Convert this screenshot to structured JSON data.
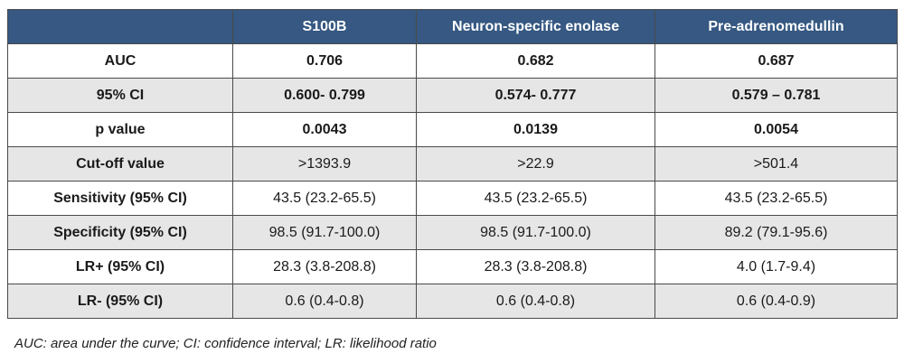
{
  "table": {
    "headers": [
      "",
      "S100B",
      "Neuron-specific enolase",
      "Pre-adrenomedullin"
    ],
    "rows": [
      {
        "label": "AUC",
        "cells": [
          "0.706",
          "0.682",
          "0.687"
        ],
        "bold": true
      },
      {
        "label": "95% CI",
        "cells": [
          "0.600- 0.799",
          "0.574- 0.777",
          "0.579 – 0.781"
        ],
        "bold": true
      },
      {
        "label": "p value",
        "cells": [
          "0.0043",
          "0.0139",
          "0.0054"
        ],
        "bold": true
      },
      {
        "label": "Cut-off value",
        "cells": [
          ">1393.9",
          ">22.9",
          ">501.4"
        ],
        "bold": false
      },
      {
        "label": "Sensitivity (95% CI)",
        "cells": [
          "43.5 (23.2-65.5)",
          "43.5 (23.2-65.5)",
          "43.5 (23.2-65.5)"
        ],
        "bold": false
      },
      {
        "label": "Specificity (95% CI)",
        "cells": [
          "98.5 (91.7-100.0)",
          "98.5 (91.7-100.0)",
          "89.2 (79.1-95.6)"
        ],
        "bold": false
      },
      {
        "label": "LR+ (95% CI)",
        "cells": [
          "28.3 (3.8-208.8)",
          "28.3 (3.8-208.8)",
          "4.0 (1.7-9.4)"
        ],
        "bold": false
      },
      {
        "label": "LR- (95% CI)",
        "cells": [
          "0.6 (0.4-0.8)",
          "0.6 (0.4-0.8)",
          "0.6 (0.4-0.9)"
        ],
        "bold": false
      }
    ]
  },
  "footnote": "AUC: area under the curve; CI: confidence interval; LR: likelihood ratio",
  "colors": {
    "header_bg": "#365882",
    "header_text": "#ffffff",
    "row_alt_bg": "#e6e6e6",
    "border": "#4a4a4a"
  }
}
